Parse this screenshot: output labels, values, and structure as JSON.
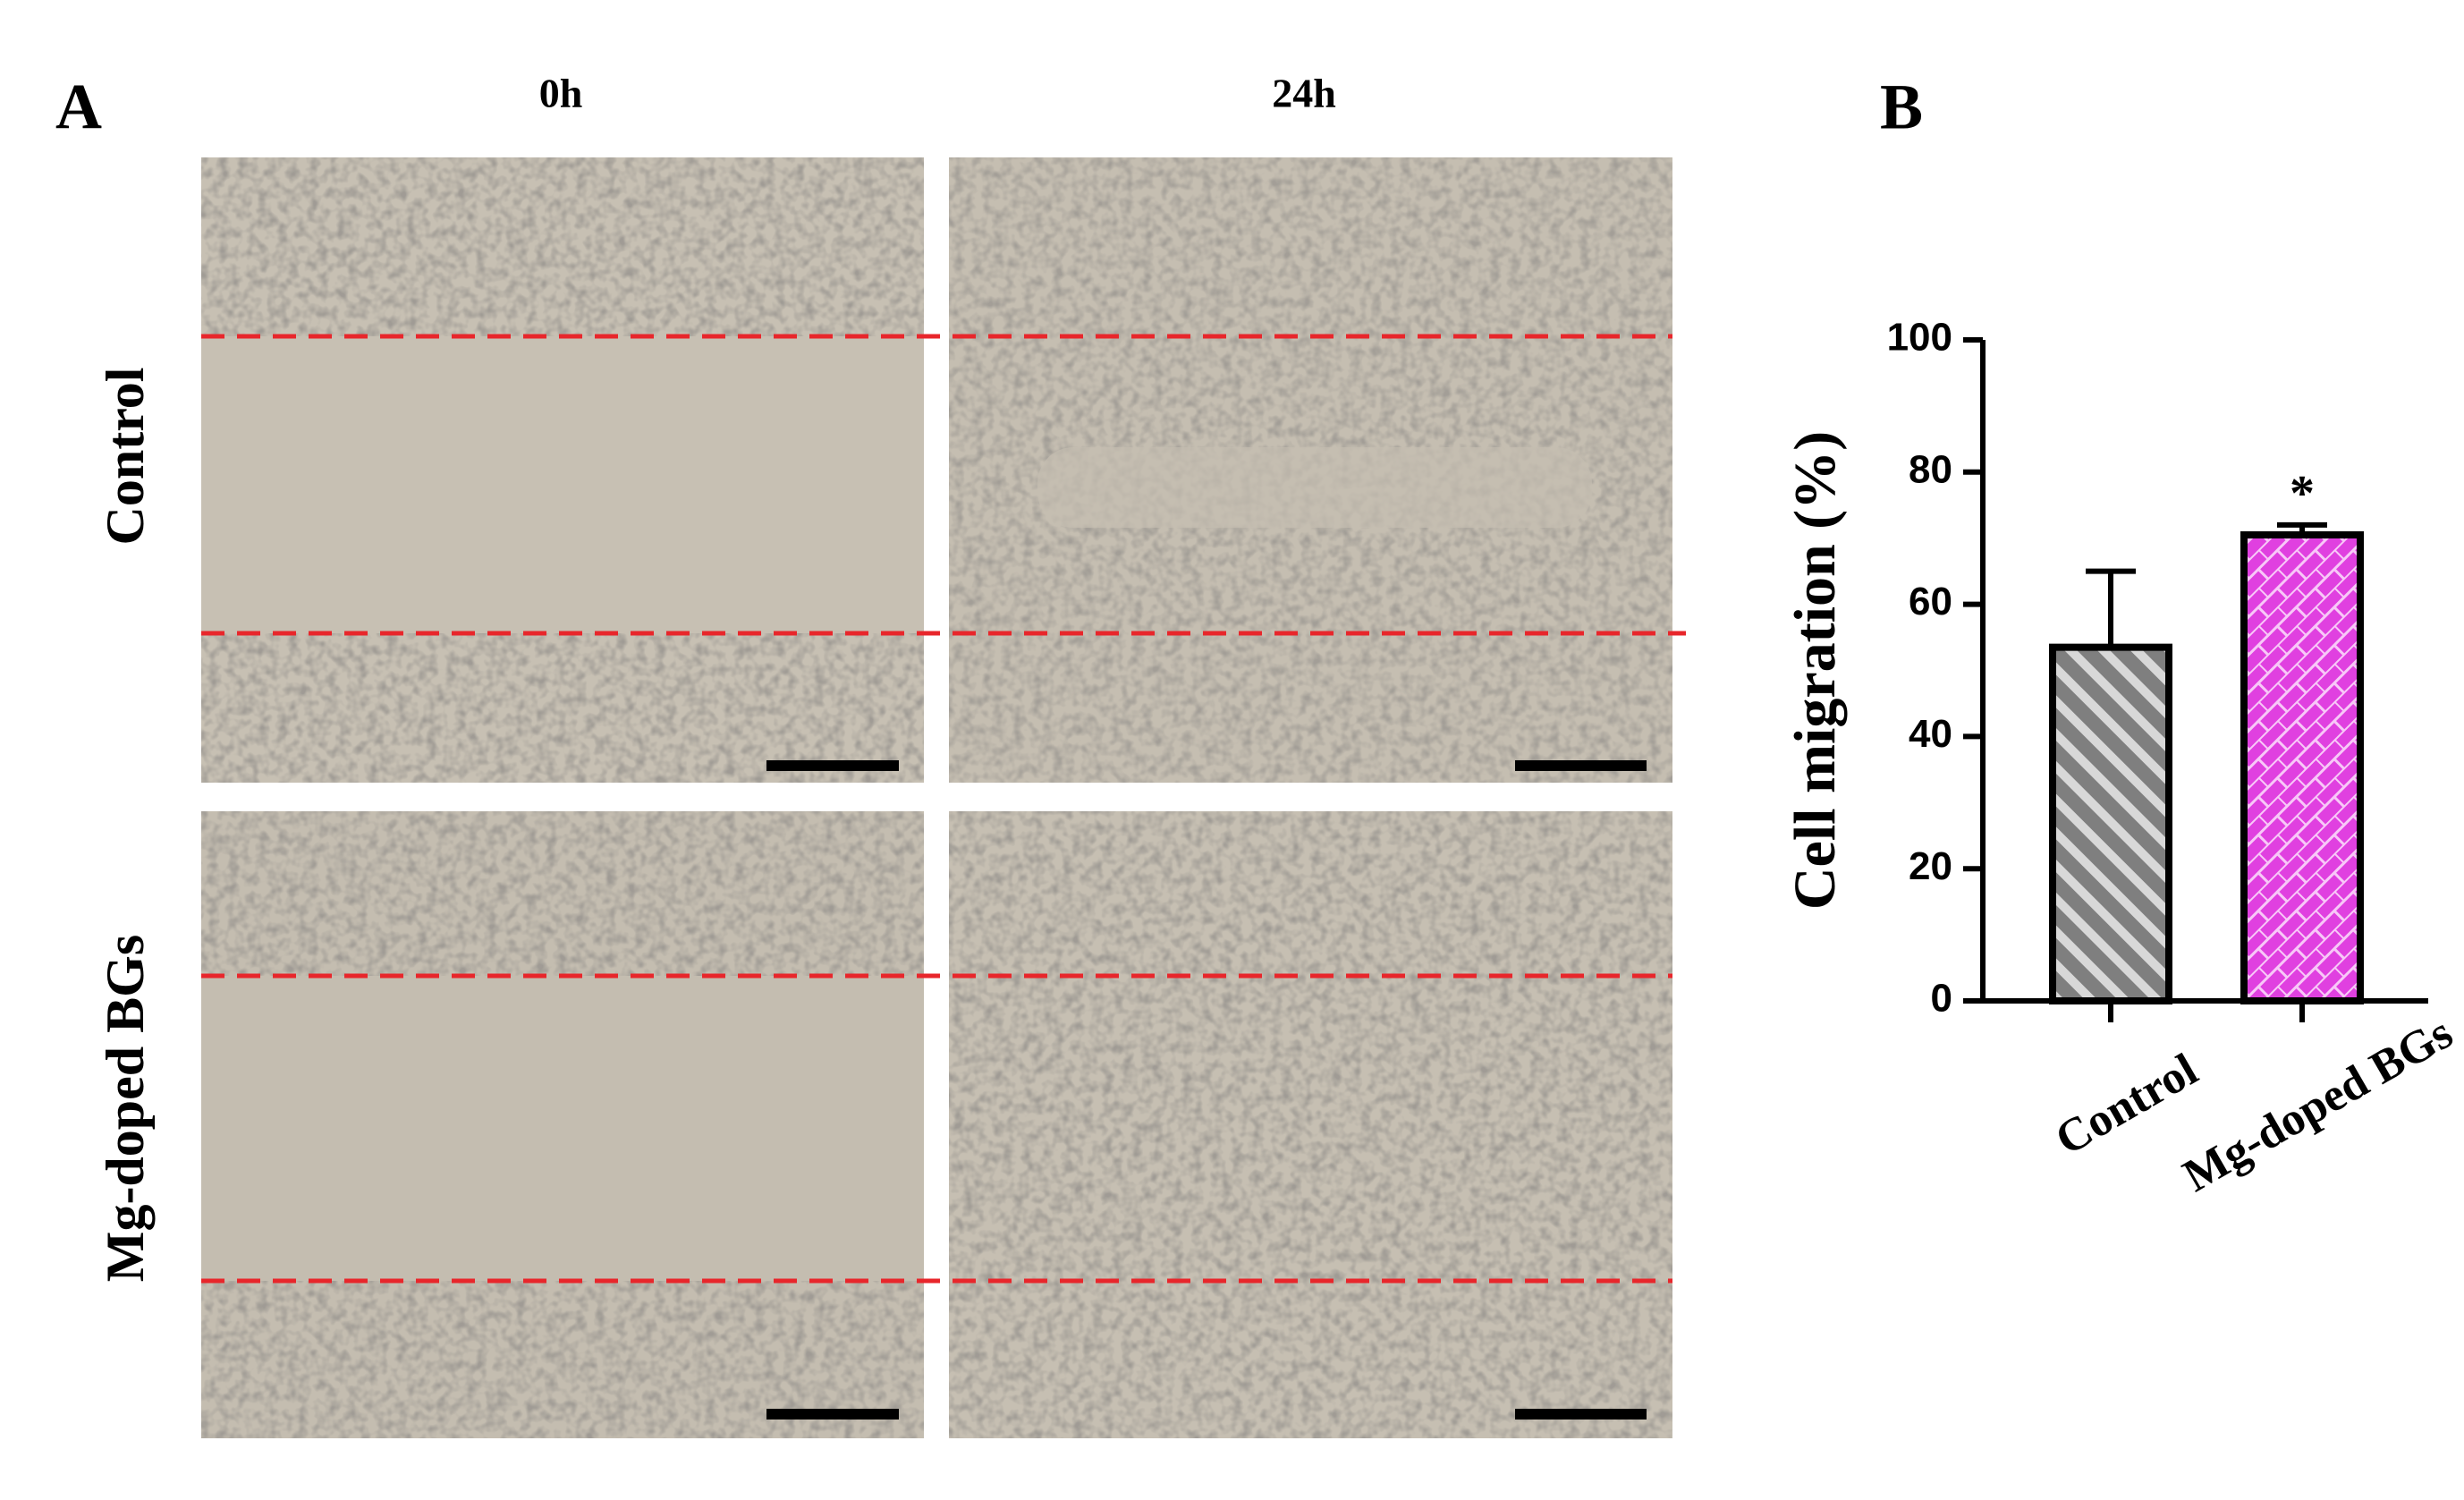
{
  "panels": {
    "a_label": "A",
    "b_label": "B",
    "columns": [
      "0h",
      "24h"
    ],
    "rows": [
      "Control",
      "Mg-doped BGs"
    ]
  },
  "chart_data": {
    "type": "bar",
    "ylabel": "Cell migration (%)",
    "categories": [
      "Control",
      "Mg-doped BGs"
    ],
    "values": [
      53.5,
      70.5
    ],
    "errors": [
      11.5,
      1.5
    ],
    "colors": [
      "#7f7f7f",
      "#e040e0"
    ],
    "annotation": "*",
    "ylim": [
      0,
      100
    ],
    "yticks": [
      0,
      20,
      40,
      60,
      80,
      100
    ],
    "grid": false
  }
}
